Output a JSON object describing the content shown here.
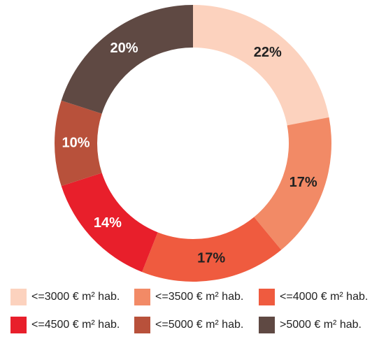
{
  "chart_data": {
    "type": "pie",
    "categories": [
      "<=3000 € m² hab.",
      "<=3500 € m² hab.",
      "<=4000 € m² hab.",
      "<=4500 € m² hab.",
      "<=5000 € m² hab.",
      ">5000 € m² hab."
    ],
    "values": [
      22,
      17,
      17,
      14,
      10,
      20
    ],
    "value_labels": [
      "22%",
      "17%",
      "17%",
      "14%",
      "10%",
      "20%"
    ],
    "colors": [
      "#fcd2be",
      "#f28a66",
      "#ef5b3f",
      "#e81f2b",
      "#b8513b",
      "#5f4943"
    ],
    "donut": true,
    "legend": "bottom"
  }
}
